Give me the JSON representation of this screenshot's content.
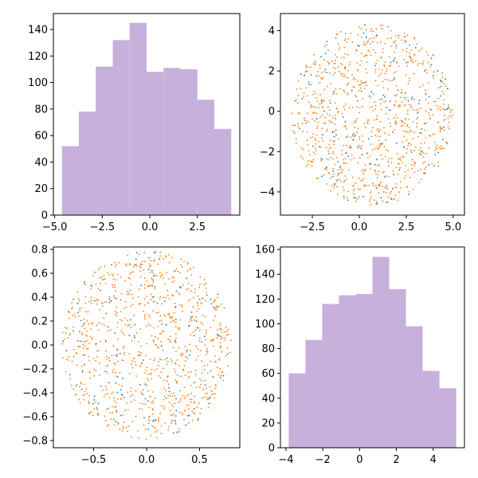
{
  "chart_data": [
    {
      "type": "histogram",
      "bins": [
        {
          "x0": -4.62,
          "x1": -3.73,
          "count": 52
        },
        {
          "x0": -3.73,
          "x1": -2.84,
          "count": 78
        },
        {
          "x0": -2.84,
          "x1": -1.95,
          "count": 112
        },
        {
          "x0": -1.95,
          "x1": -1.06,
          "count": 132
        },
        {
          "x0": -1.06,
          "x1": -0.17,
          "count": 145
        },
        {
          "x0": -0.17,
          "x1": 0.72,
          "count": 108
        },
        {
          "x0": 0.72,
          "x1": 1.61,
          "count": 111
        },
        {
          "x0": 1.61,
          "x1": 2.5,
          "count": 110
        },
        {
          "x0": 2.5,
          "x1": 3.39,
          "count": 87
        },
        {
          "x0": 3.39,
          "x1": 4.28,
          "count": 65
        }
      ],
      "color": "#c7b0dc",
      "xlim": [
        -5.07,
        4.73
      ],
      "ylim": [
        0,
        152
      ],
      "xticks": [
        -5.0,
        -2.5,
        0.0,
        2.5
      ],
      "xtick_labels": [
        "−5.0",
        "−2.5",
        "0.0",
        "2.5"
      ],
      "yticks": [
        0,
        20,
        40,
        60,
        80,
        100,
        120,
        140
      ],
      "ytick_labels": [
        "0",
        "20",
        "40",
        "60",
        "80",
        "100",
        "120",
        "140"
      ]
    },
    {
      "type": "scatter",
      "shape": "disk",
      "center": [
        0.7,
        -0.15
      ],
      "radius_x": 4.3,
      "radius_y": 4.5,
      "series": [
        {
          "color": "#ff7f0e",
          "point_count": 850
        },
        {
          "color": "#1f77b4",
          "point_count": 150
        }
      ],
      "xlim": [
        -4.2,
        5.6
      ],
      "ylim": [
        -5.15,
        4.85
      ],
      "xticks": [
        -2.5,
        0.0,
        2.5,
        5.0
      ],
      "xtick_labels": [
        "−2.5",
        "0.0",
        "2.5",
        "5.0"
      ],
      "yticks": [
        -4,
        -2,
        0,
        2,
        4
      ],
      "ytick_labels": [
        "−4",
        "−2",
        "0",
        "2",
        "4"
      ]
    },
    {
      "type": "scatter",
      "shape": "disk",
      "center": [
        0.0,
        0.0
      ],
      "radius_x": 0.8,
      "radius_y": 0.79,
      "series": [
        {
          "color": "#ff7f0e",
          "point_count": 850
        },
        {
          "color": "#1f77b4",
          "point_count": 150
        }
      ],
      "xlim": [
        -0.88,
        0.88
      ],
      "ylim": [
        -0.86,
        0.82
      ],
      "xticks": [
        -0.5,
        0.0,
        0.5
      ],
      "xtick_labels": [
        "−0.5",
        "0.0",
        "0.5"
      ],
      "yticks": [
        -0.8,
        -0.6,
        -0.4,
        -0.2,
        0.0,
        0.2,
        0.4,
        0.6,
        0.8
      ],
      "ytick_labels": [
        "−0.8",
        "−0.6",
        "−0.4",
        "−0.2",
        "0.0",
        "0.2",
        "0.4",
        "0.6",
        "0.8"
      ]
    },
    {
      "type": "histogram",
      "bins": [
        {
          "x0": -3.85,
          "x1": -2.94,
          "count": 60
        },
        {
          "x0": -2.94,
          "x1": -2.03,
          "count": 87
        },
        {
          "x0": -2.03,
          "x1": -1.12,
          "count": 116
        },
        {
          "x0": -1.12,
          "x1": -0.21,
          "count": 123
        },
        {
          "x0": -0.21,
          "x1": 0.7,
          "count": 124
        },
        {
          "x0": 0.7,
          "x1": 1.61,
          "count": 154
        },
        {
          "x0": 1.61,
          "x1": 2.52,
          "count": 128
        },
        {
          "x0": 2.52,
          "x1": 3.43,
          "count": 98
        },
        {
          "x0": 3.43,
          "x1": 4.34,
          "count": 62
        },
        {
          "x0": 4.34,
          "x1": 5.25,
          "count": 48
        }
      ],
      "color": "#c7b0dc",
      "xlim": [
        -4.3,
        5.7
      ],
      "ylim": [
        0,
        162
      ],
      "xticks": [
        -4,
        -2,
        0,
        2,
        4
      ],
      "xtick_labels": [
        "−4",
        "−2",
        "0",
        "2",
        "4"
      ],
      "yticks": [
        0,
        20,
        40,
        60,
        80,
        100,
        120,
        140,
        160
      ],
      "ytick_labels": [
        "0",
        "20",
        "40",
        "60",
        "80",
        "100",
        "120",
        "140",
        "160"
      ]
    }
  ]
}
